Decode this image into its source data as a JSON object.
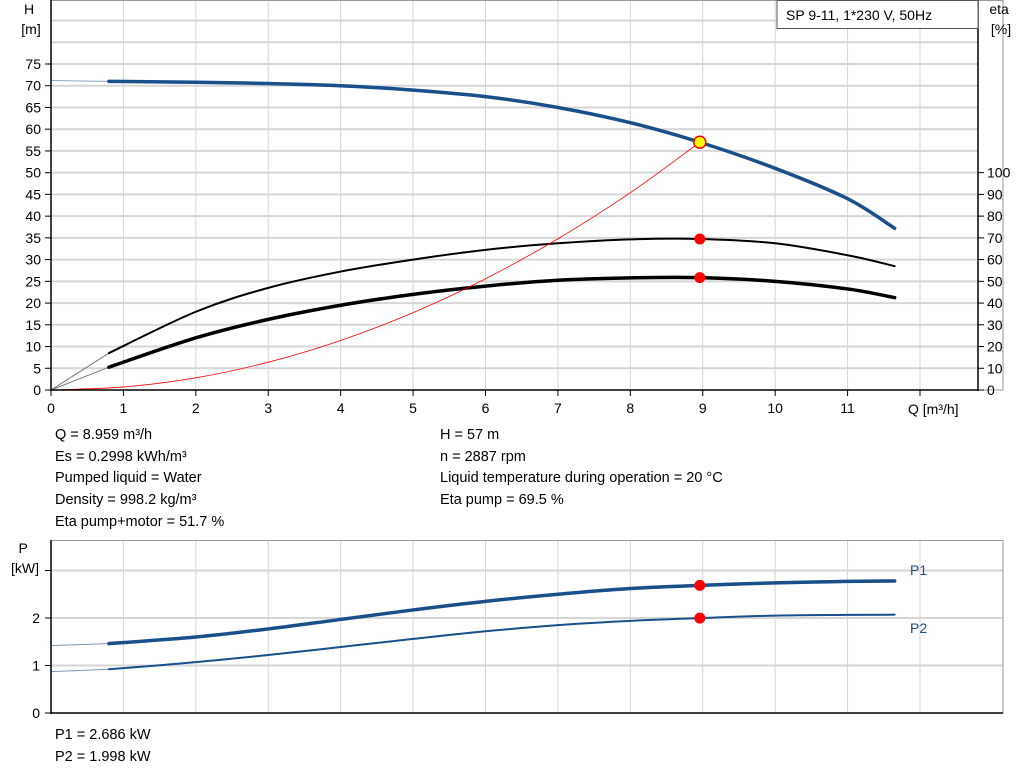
{
  "chart_data": [
    {
      "type": "line",
      "title": "SP 9-11, 1*230 V, 50Hz",
      "xlabel": "Q [m³/h]",
      "ylabel": "H\n[m]",
      "ylabel_right": "eta\n[%]",
      "xlim": [
        0,
        12
      ],
      "ylim": [
        0,
        90
      ],
      "ylim_right": [
        0,
        180
      ],
      "x_ticks": [
        "0",
        "1",
        "2",
        "3",
        "4",
        "5",
        "6",
        "7",
        "8",
        "9",
        "10",
        "11"
      ],
      "y_ticks": [
        "0",
        "5",
        "10",
        "15",
        "20",
        "25",
        "30",
        "35",
        "40",
        "45",
        "50",
        "55",
        "60",
        "65",
        "70",
        "75"
      ],
      "y_ticks_right": [
        "0",
        "10",
        "20",
        "30",
        "40",
        "50",
        "60",
        "70",
        "80",
        "90",
        "100"
      ],
      "grid": true,
      "series": [
        {
          "id": "head",
          "axis": "left",
          "color": "#1a4f8a",
          "x": [
            0.8,
            2,
            3,
            4,
            5,
            6,
            7,
            8,
            8.96,
            10,
            11,
            11.65
          ],
          "y": [
            71,
            70.8,
            70.5,
            70,
            69,
            67.5,
            65,
            61.5,
            57,
            51,
            44,
            37.2
          ],
          "extension": {
            "x": [
              0,
              0.8
            ],
            "y": [
              71.2,
              71
            ]
          }
        },
        {
          "id": "eta-pump",
          "axis": "right",
          "color": "#000000",
          "x": [
            0.8,
            2,
            3,
            4,
            5,
            6,
            7,
            8,
            8.96,
            10,
            11,
            11.65
          ],
          "y": [
            17,
            36,
            47,
            54.5,
            60,
            64.5,
            67.5,
            69.3,
            69.5,
            67.5,
            62,
            57
          ],
          "extension": {
            "x": [
              0,
              0.8
            ],
            "y": [
              0,
              17
            ]
          }
        },
        {
          "id": "eta-pump-motor",
          "axis": "right",
          "color": "#000000",
          "x": [
            0.8,
            2,
            3,
            4,
            5,
            6,
            7,
            8,
            8.96,
            10,
            11,
            11.65
          ],
          "y": [
            10.5,
            24,
            32.5,
            39,
            44,
            47.8,
            50.5,
            51.6,
            51.7,
            50,
            46.5,
            42.5
          ],
          "extension": {
            "x": [
              0,
              0.8
            ],
            "y": [
              0,
              10.5
            ]
          }
        },
        {
          "id": "system-curve",
          "axis": "left",
          "color": "#ff0000",
          "x": [
            0,
            1,
            2,
            3,
            4,
            5,
            6,
            7,
            8,
            8.96
          ],
          "y": [
            0,
            0.7,
            2.8,
            6.4,
            11.4,
            17.8,
            25.6,
            34.8,
            45.4,
            57
          ]
        }
      ],
      "duty_point": {
        "x": 8.959,
        "head": 57,
        "eta_pump": 69.5,
        "eta_pump_motor": 51.7,
        "marker_color": "#ffff00",
        "dot_color": "#ff0000"
      }
    },
    {
      "type": "line",
      "ylabel": "P\n[kW]",
      "xlim": [
        0,
        12
      ],
      "ylim": [
        0,
        3.6
      ],
      "y_ticks": [
        "0",
        "1",
        "2"
      ],
      "grid": true,
      "series": [
        {
          "name": "P1",
          "color": "#1a4f8a",
          "x": [
            0.8,
            2,
            3,
            4,
            5,
            6,
            7,
            8,
            8.96,
            10,
            11,
            11.65
          ],
          "y": [
            1.46,
            1.6,
            1.77,
            1.97,
            2.17,
            2.35,
            2.5,
            2.62,
            2.686,
            2.74,
            2.77,
            2.78
          ],
          "extension": {
            "x": [
              0,
              0.8
            ],
            "y": [
              1.42,
              1.46
            ]
          }
        },
        {
          "name": "P2",
          "color": "#1a4f8a",
          "x": [
            0.8,
            2,
            3,
            4,
            5,
            6,
            7,
            8,
            8.96,
            10,
            11,
            11.65
          ],
          "y": [
            0.92,
            1.07,
            1.22,
            1.39,
            1.56,
            1.72,
            1.85,
            1.94,
            1.998,
            2.05,
            2.065,
            2.07
          ],
          "extension": {
            "x": [
              0,
              0.8
            ],
            "y": [
              0.87,
              0.92
            ]
          }
        }
      ],
      "duty_point": {
        "x": 8.959,
        "P1": 2.686,
        "P2": 1.998,
        "dot_color": "#ff0000"
      }
    }
  ],
  "info_left": [
    "Q = 8.959 m³/h",
    "Es = 0.2998 kWh/m³",
    "Pumped liquid = Water",
    "Density = 998.2 kg/m³",
    "Eta pump+motor = 51.7 %"
  ],
  "info_right": [
    "H = 57 m",
    "n = 2887 rpm",
    "Liquid temperature during operation = 20 °C",
    "Eta pump = 69.5 %"
  ],
  "power_info": [
    "P1 = 2.686 kW",
    "P2 = 1.998 kW"
  ]
}
